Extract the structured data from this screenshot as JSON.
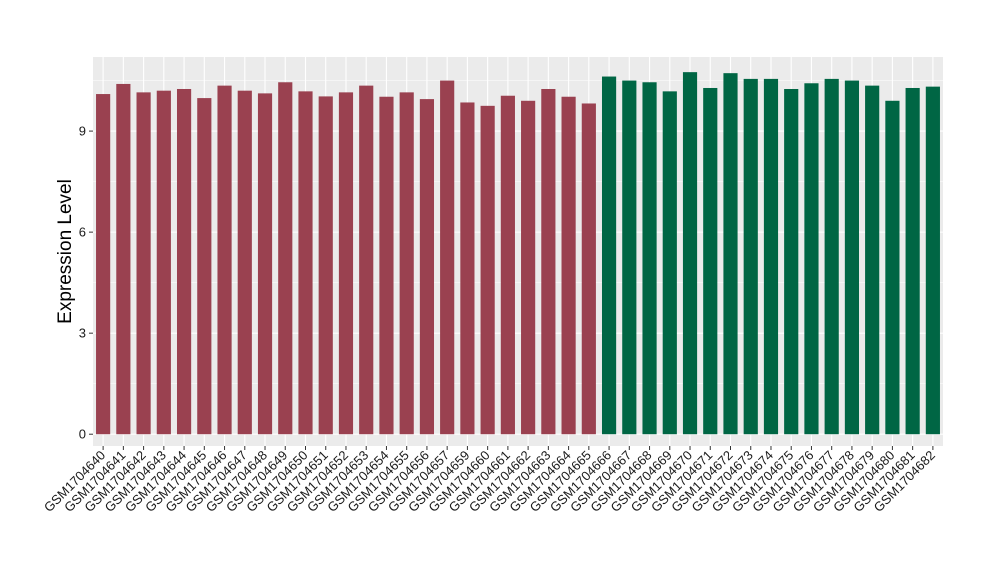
{
  "chart_data": {
    "type": "bar",
    "title": "",
    "xlabel": "",
    "ylabel": "Expression Level",
    "ylim": [
      -0.35,
      11.2
    ],
    "yticks": [
      0,
      3,
      6,
      9
    ],
    "grid": true,
    "legend": "none",
    "categories": [
      "GSM1704640",
      "GSM1704641",
      "GSM1704642",
      "GSM1704643",
      "GSM1704644",
      "GSM1704645",
      "GSM1704646",
      "GSM1704647",
      "GSM1704648",
      "GSM1704649",
      "GSM1704650",
      "GSM1704651",
      "GSM1704652",
      "GSM1704653",
      "GSM1704654",
      "GSM1704655",
      "GSM1704656",
      "GSM1704657",
      "GSM1704659",
      "GSM1704660",
      "GSM1704661",
      "GSM1704662",
      "GSM1704663",
      "GSM1704664",
      "GSM1704665",
      "GSM1704666",
      "GSM1704667",
      "GSM1704668",
      "GSM1704669",
      "GSM1704670",
      "GSM1704671",
      "GSM1704672",
      "GSM1704673",
      "GSM1704674",
      "GSM1704675",
      "GSM1704676",
      "GSM1704677",
      "GSM1704678",
      "GSM1704679",
      "GSM1704680",
      "GSM1704681",
      "GSM1704682"
    ],
    "values": [
      10.1,
      10.4,
      10.15,
      10.2,
      10.25,
      9.98,
      10.35,
      10.2,
      10.12,
      10.45,
      10.18,
      10.03,
      10.15,
      10.35,
      10.02,
      10.15,
      9.95,
      10.5,
      9.85,
      9.75,
      10.05,
      9.9,
      10.25,
      10.02,
      9.82,
      10.62,
      10.5,
      10.45,
      10.18,
      10.75,
      10.28,
      10.72,
      10.55,
      10.55,
      10.25,
      10.42,
      10.55,
      10.5,
      10.35,
      9.9,
      10.28,
      10.32
    ],
    "groups": [
      {
        "color": "#9a4150",
        "count": 25
      },
      {
        "color": "#006644",
        "count": 17
      }
    ],
    "colors": {
      "panel_bg": "#ebebeb",
      "grid": "#ffffff",
      "tick": "#333333"
    }
  }
}
